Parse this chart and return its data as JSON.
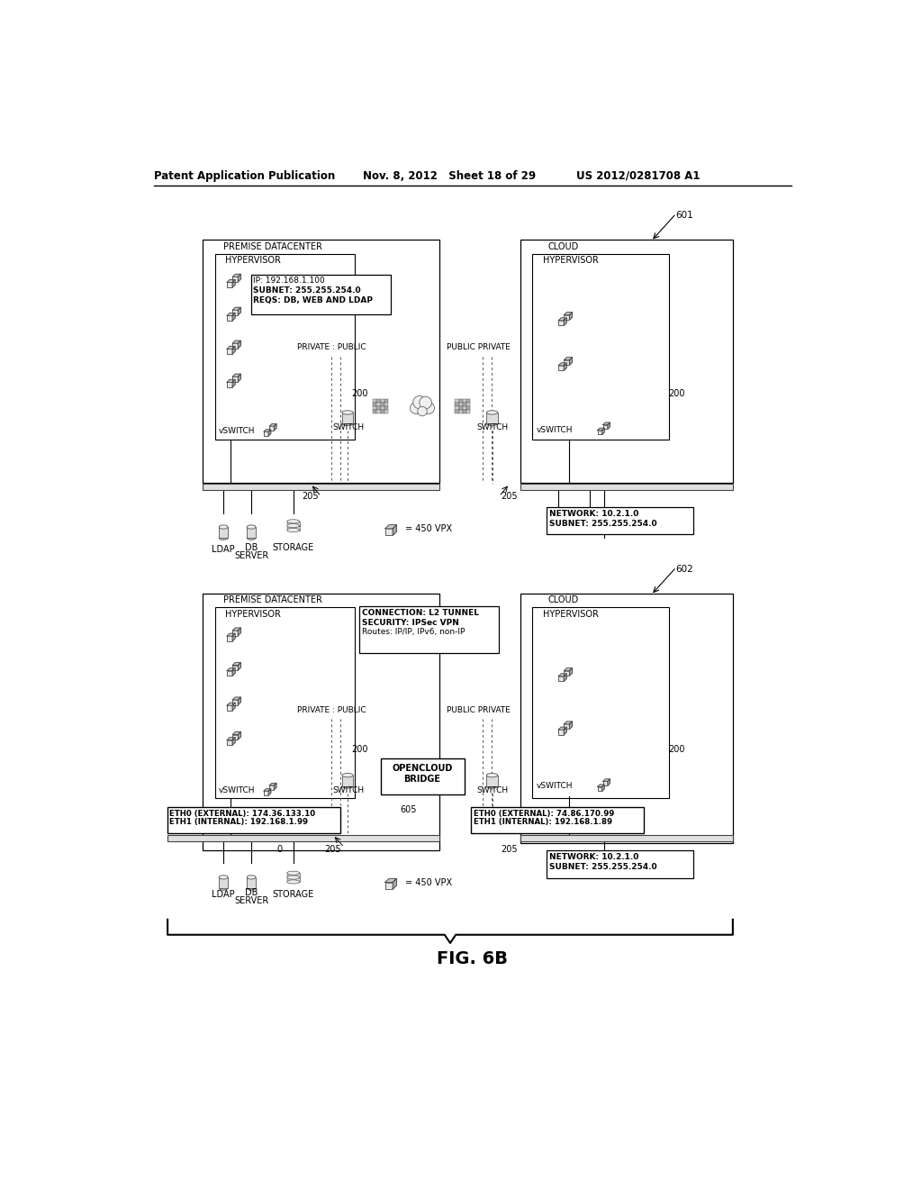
{
  "bg_color": "#ffffff",
  "header_left": "Patent Application Publication",
  "header_mid": "Nov. 8, 2012   Sheet 18 of 29",
  "header_right": "US 2012/0281708 A1",
  "figure_label": "FIG. 6B",
  "diagram601": {
    "label": "601",
    "premise_label": "PREMISE DATACENTER",
    "cloud_label": "CLOUD",
    "hypervisor_left_label": "HYPERVISOR",
    "hypervisor_right_label": "HYPERVISOR",
    "vswitch_left": "vSWITCH",
    "vswitch_right": "vSWITCH",
    "label_200_left": "200",
    "label_200_right": "200",
    "label_205_left": "205",
    "label_205_right": "205",
    "private_public": "PRIVATE : PUBLIC",
    "public_private": "PUBLIC PRIVATE",
    "switch_left": "SWITCH",
    "switch_right": "SWITCH",
    "info_line1": "IP: 192.168.1.100",
    "info_line2": "SUBNET: 255.255.254.0",
    "info_line3": "REQS: DB, WEB AND LDAP",
    "network_line1": "NETWORK: 10.2.1.0",
    "network_line2": "SUBNET: 255.255.254.0",
    "ldap_label": "LDAP",
    "db_label": "DB",
    "server_label": "SERVER",
    "storage_label": "STORAGE",
    "vpx_label": "= 450 VPX"
  },
  "diagram602": {
    "label": "602",
    "premise_label": "PREMISE DATACENTER",
    "cloud_label": "CLOUD",
    "hypervisor_left_label": "HYPERVISOR",
    "hypervisor_right_label": "HYPERVISOR",
    "vswitch_left": "vSWITCH",
    "vswitch_right": "vSWITCH",
    "label_200_left": "200",
    "label_200_right": "200",
    "label_205_left": "205",
    "label_205_right": "205",
    "label_605": "605",
    "private_public": "PRIVATE : PUBLIC",
    "public_private": "PUBLIC PRIVATE",
    "switch_left": "SWITCH",
    "switch_right": "SWITCH",
    "bridge_line1": "OPENCLOUD",
    "bridge_line2": "BRIDGE",
    "conn_line1": "CONNECTION: L2 TUNNEL",
    "conn_line2": "SECURITY: IPSec VPN",
    "conn_line3": "Routes: IP/IP, IPv6, non-IP",
    "eth_left_line1": "ETH0 (EXTERNAL): 174.36.133.10",
    "eth_left_line2": "ETH1 (INTERNAL): 192.168.1.99",
    "eth_right_line1": "ETH0 (EXTERNAL): 74.86.170.99",
    "eth_right_line2": "ETH1 (INTERNAL): 192.168.1.89",
    "network_line1": "NETWORK: 10.2.1.0",
    "network_line2": "SUBNET: 255.255.254.0",
    "ldap_label": "LDAP",
    "db_label": "DB",
    "server_label": "SERVER",
    "storage_label": "STORAGE",
    "vpx_label": "= 450 VPX"
  }
}
